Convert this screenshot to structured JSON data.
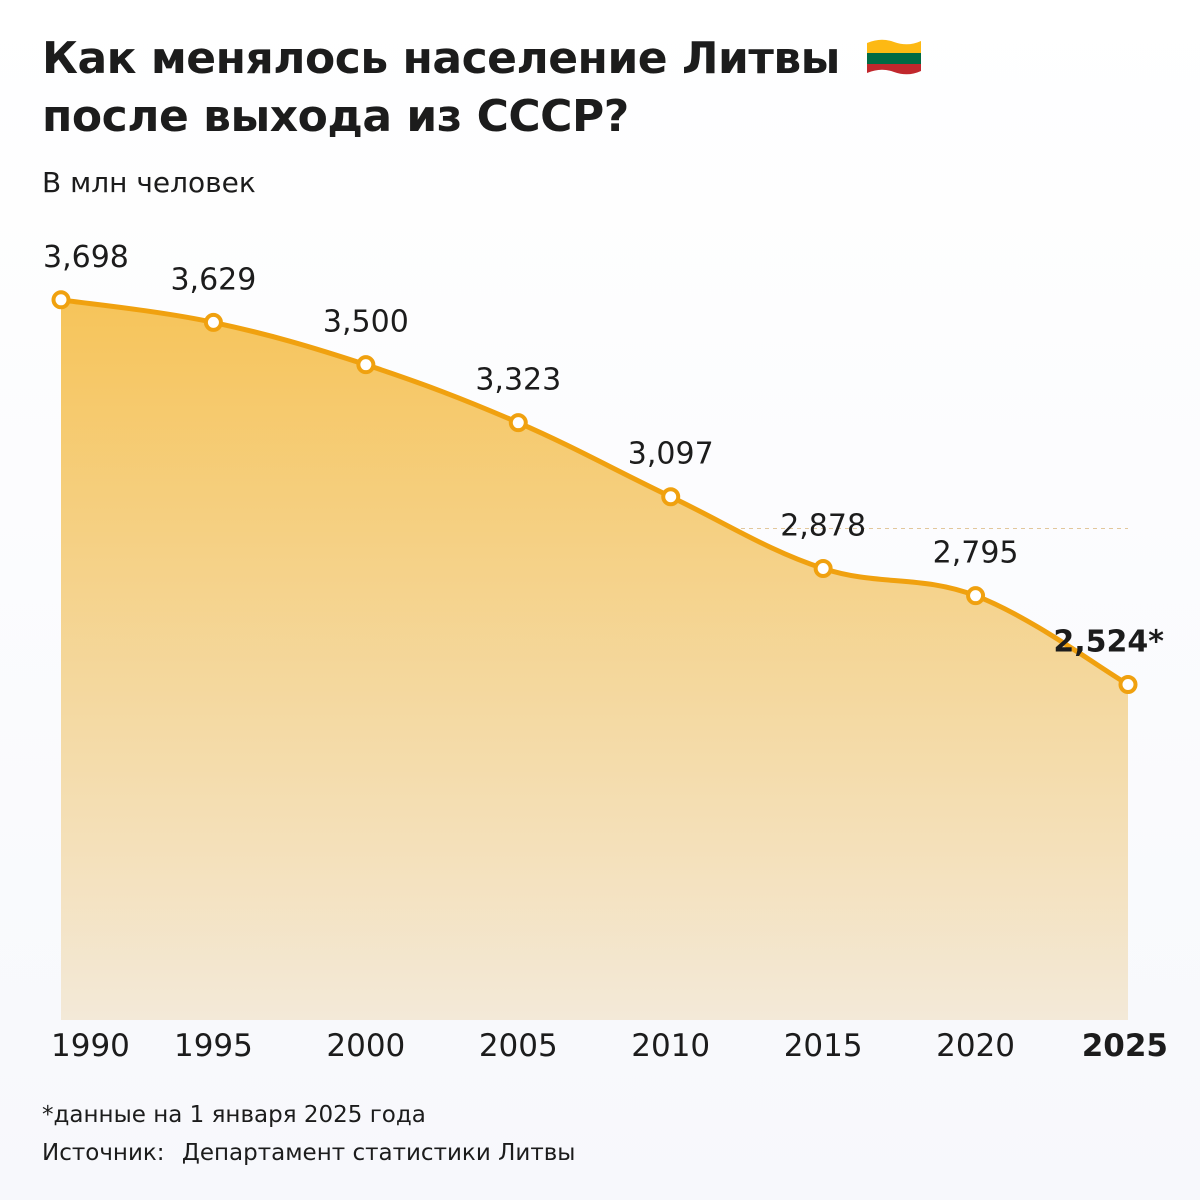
{
  "header": {
    "title_line1": "Как менялось население Литвы",
    "title_line2": "после выхода из СССР?",
    "subtitle": "В млн человек"
  },
  "colors": {
    "line": "#f0a10f",
    "area_top": "#f6c45a",
    "area_bottom": "#f3e9d8",
    "grid": "#e2c79b",
    "flag_yellow": "#fdb913",
    "flag_green": "#006a44",
    "flag_red": "#c1272d"
  },
  "chart_data": {
    "type": "area",
    "x": [
      "1990",
      "1995",
      "2000",
      "2005",
      "2010",
      "2015",
      "2020",
      "2025"
    ],
    "values": [
      3.698,
      3.629,
      3.5,
      3.323,
      3.097,
      2.878,
      2.795,
      2.524
    ],
    "data_labels": [
      "3,698",
      "3,629",
      "3,500",
      "3,323",
      "3,097",
      "2,878",
      "2,795",
      "2,524*"
    ],
    "highlighted_point": "2025",
    "ylim": [
      1.5,
      3.85
    ],
    "grid": "dashed horizontal",
    "legend": "none"
  },
  "footer": {
    "footnote": "*данные на 1 января 2025 года",
    "source_label": "Источник:",
    "source_name": "Департамент статистики Литвы"
  }
}
